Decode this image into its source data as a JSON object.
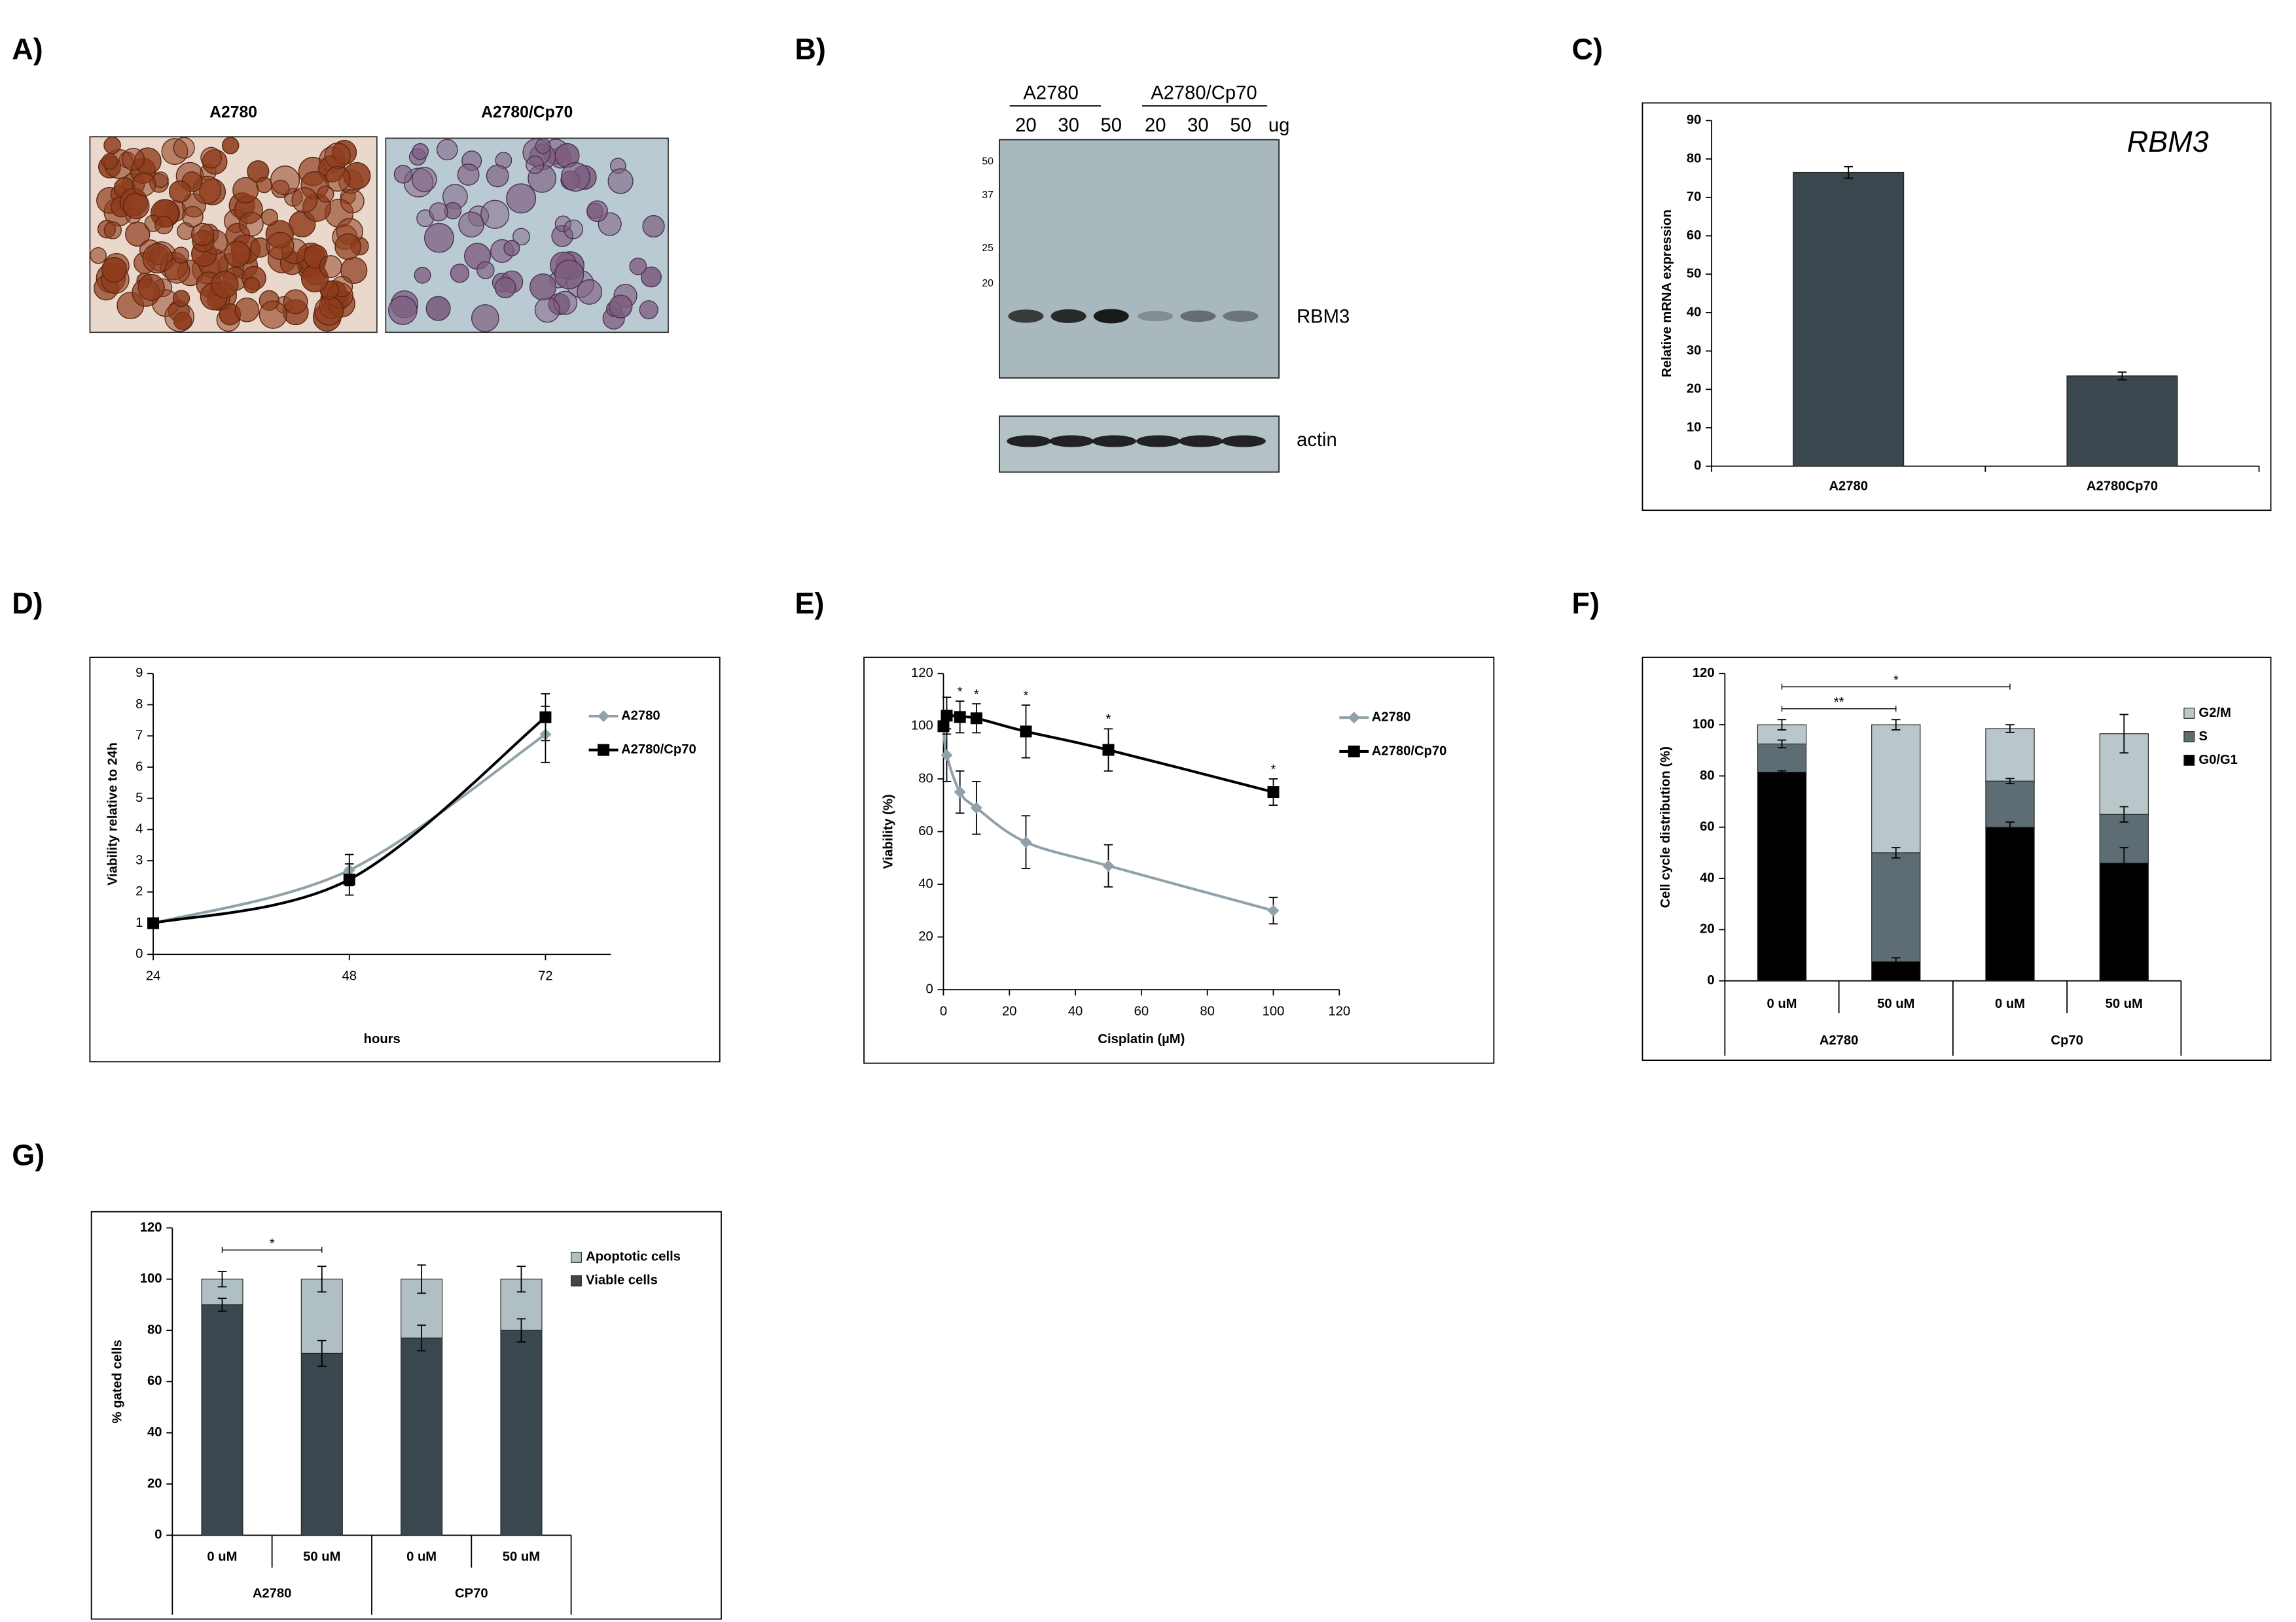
{
  "panel_labels": [
    "A)",
    "B)",
    "C)",
    "D)",
    "E)",
    "F)",
    "G)"
  ],
  "panel_a": {
    "titles": [
      "A2780",
      "A2780/Cp70"
    ]
  },
  "panel_b": {
    "groups": [
      "A2780",
      "A2780/Cp70"
    ],
    "lanes": [
      20,
      30,
      50,
      20,
      30,
      50
    ],
    "unit": "ug",
    "markers": [
      50,
      37,
      25,
      20
    ],
    "bands": [
      "RBM3",
      "actin"
    ]
  },
  "chart_data": [
    {
      "type": "bar",
      "annotation": "RBM3",
      "ylabel": "Relative mRNA expression",
      "categories": [
        "A2780",
        "A2780Cp70"
      ],
      "values": [
        76.5,
        23.5
      ],
      "errors": [
        1.5,
        1
      ],
      "color": "#3b474f",
      "ylim": [
        0,
        90
      ],
      "yticks": [
        0,
        10,
        20,
        30,
        40,
        50,
        60,
        70,
        80,
        90
      ]
    },
    {
      "type": "line",
      "xlabel": "hours",
      "ylabel": "Viability relative to 24h",
      "x": [
        24,
        48,
        72
      ],
      "xlim": [
        24,
        80
      ],
      "xticks": [
        24,
        48,
        72
      ],
      "ylim": [
        0,
        9
      ],
      "yticks": [
        0,
        1,
        2,
        3,
        4,
        5,
        6,
        7,
        8,
        9
      ],
      "legend": "right",
      "series": [
        {
          "name": "A2780",
          "color": "#8fa2a9",
          "marker": "diamond",
          "values": [
            1,
            2.7,
            7.05
          ],
          "errors": [
            0,
            0.5,
            0.9
          ]
        },
        {
          "name": "A2780/Cp70",
          "color": "#000000",
          "marker": "square",
          "values": [
            1,
            2.4,
            7.6
          ],
          "errors": [
            0,
            0.5,
            0.75
          ]
        }
      ]
    },
    {
      "type": "line",
      "xlabel": "Cisplatin (µM)",
      "ylabel": "Viability (%)",
      "x": [
        0,
        1,
        5,
        10,
        25,
        50,
        100
      ],
      "xlim": [
        0,
        120
      ],
      "xticks": [
        0,
        20,
        40,
        60,
        80,
        100,
        120
      ],
      "ylim": [
        0,
        120
      ],
      "yticks": [
        0,
        20,
        40,
        60,
        80,
        100,
        120
      ],
      "legend": "right",
      "series": [
        {
          "name": "A2780",
          "color": "#8fa2a9",
          "marker": "diamond",
          "values": [
            100,
            89,
            75,
            69,
            56,
            47,
            30
          ],
          "errors": [
            0,
            10,
            8,
            10,
            10,
            8,
            5
          ]
        },
        {
          "name": "A2780/Cp70",
          "color": "#000000",
          "marker": "square",
          "values": [
            100,
            104,
            103.5,
            103,
            98,
            91,
            75
          ],
          "errors": [
            0,
            7,
            6,
            5.5,
            10,
            8,
            5
          ]
        }
      ],
      "annotations": [
        "*",
        "*",
        "*",
        "*",
        "*"
      ]
    },
    {
      "type": "stacked_bar",
      "ylabel": "Cell cycle distribution (%)",
      "categories": [
        "0 uM",
        "50 uM",
        "0 uM",
        "50 uM"
      ],
      "groups": [
        "A2780",
        "Cp70"
      ],
      "ylim": [
        0,
        120
      ],
      "yticks": [
        0,
        20,
        40,
        60,
        80,
        100,
        120
      ],
      "legend": "right",
      "series": [
        {
          "name": "G0/G1",
          "color": "#000000",
          "values": [
            81.5,
            7.5,
            60,
            46
          ],
          "errors": [
            0.5,
            1.5,
            2,
            6
          ]
        },
        {
          "name": "S",
          "color": "#5e6d74",
          "values": [
            11,
            42.5,
            18,
            19
          ],
          "errors": [
            1.5,
            2,
            1,
            3
          ]
        },
        {
          "name": "G2/M",
          "color": "#b9c7cb",
          "values": [
            7.5,
            50,
            20.5,
            31.5
          ],
          "errors": [
            2,
            2,
            1.5,
            7.5
          ]
        }
      ],
      "brackets": [
        "**",
        "*"
      ]
    },
    {
      "type": "stacked_bar",
      "ylabel": "% gated cells",
      "categories": [
        "0 uM",
        "50 uM",
        "0 uM",
        "50 uM"
      ],
      "groups": [
        "A2780",
        "CP70"
      ],
      "ylim": [
        0,
        120
      ],
      "yticks": [
        0,
        20,
        40,
        60,
        80,
        100,
        120
      ],
      "legend": "right",
      "series": [
        {
          "name": "Viable cells",
          "color": "#3b474f",
          "values": [
            90,
            71,
            77,
            80
          ],
          "errors": [
            2.5,
            5,
            5,
            4.5
          ]
        },
        {
          "name": "Apoptotic cells",
          "color": "#b0bfc3",
          "values": [
            10,
            29,
            23,
            20
          ],
          "errors": [
            3,
            5,
            5.5,
            5
          ]
        }
      ],
      "brackets": [
        "*"
      ]
    }
  ]
}
